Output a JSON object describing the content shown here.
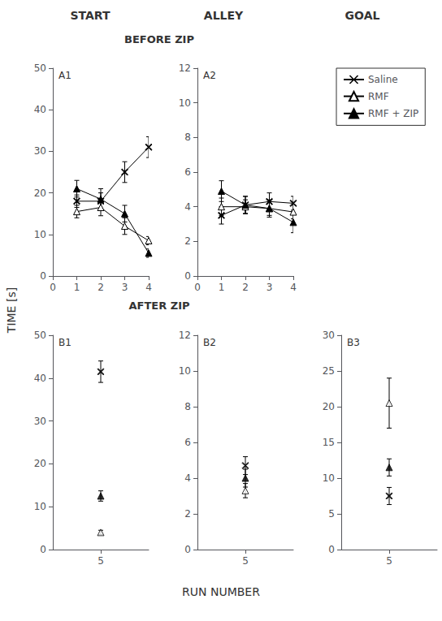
{
  "chart_data": [
    {
      "type": "line",
      "title": "A1",
      "x": [
        1,
        2,
        3,
        4
      ],
      "xlim": [
        0,
        4
      ],
      "xticks": [
        0,
        1,
        2,
        3,
        4
      ],
      "ylim": [
        0,
        50
      ],
      "yticks": [
        0,
        10,
        20,
        30,
        40,
        50
      ],
      "grid": false,
      "series": [
        {
          "name": "Saline",
          "color": "#000000",
          "marker": "x",
          "values": [
            18,
            18,
            25,
            31
          ],
          "error": [
            1.5,
            2.0,
            2.5,
            2.5
          ]
        },
        {
          "name": "RMF",
          "color": "#000000",
          "marker": "triangle-open",
          "values": [
            15.5,
            16.5,
            12,
            8.5
          ],
          "error": [
            1.5,
            2.0,
            2.0,
            1.0
          ]
        },
        {
          "name": "RMF + ZIP",
          "color": "#000000",
          "marker": "triangle",
          "values": [
            21,
            18.5,
            15,
            5.5
          ],
          "error": [
            2.0,
            2.5,
            2.0,
            1.0
          ]
        }
      ]
    },
    {
      "type": "line",
      "title": "A2",
      "x": [
        1,
        2,
        3,
        4
      ],
      "xlim": [
        0,
        4
      ],
      "xticks": [
        0,
        1,
        2,
        3,
        4
      ],
      "ylim": [
        0,
        12
      ],
      "yticks": [
        0,
        2,
        4,
        6,
        8,
        10,
        12
      ],
      "grid": false,
      "series": [
        {
          "name": "Saline",
          "color": "#000000",
          "marker": "x",
          "values": [
            3.5,
            4.1,
            4.3,
            4.2
          ],
          "error": [
            0.5,
            0.5,
            0.5,
            0.4
          ]
        },
        {
          "name": "RMF",
          "color": "#000000",
          "marker": "triangle-open",
          "values": [
            4.0,
            4.0,
            3.9,
            3.7
          ],
          "error": [
            0.5,
            0.4,
            0.4,
            0.4
          ]
        },
        {
          "name": "RMF + ZIP",
          "color": "#000000",
          "marker": "triangle",
          "values": [
            4.9,
            4.1,
            3.9,
            3.1
          ],
          "error": [
            0.6,
            0.5,
            0.5,
            0.6
          ]
        }
      ]
    },
    {
      "type": "scatter",
      "title": "B1",
      "x": [
        5
      ],
      "xlim": [
        4,
        6
      ],
      "xticks": [
        5
      ],
      "ylim": [
        0,
        50
      ],
      "yticks": [
        0,
        10,
        20,
        30,
        40,
        50
      ],
      "grid": false,
      "series": [
        {
          "name": "Saline",
          "color": "#000000",
          "marker": "x",
          "values": [
            41.5
          ],
          "error": [
            2.5
          ]
        },
        {
          "name": "RMF",
          "color": "#000000",
          "marker": "triangle-open",
          "values": [
            4.0
          ],
          "error": [
            0.5
          ]
        },
        {
          "name": "RMF + ZIP",
          "color": "#000000",
          "marker": "triangle",
          "values": [
            12.5
          ],
          "error": [
            1.2
          ]
        }
      ]
    },
    {
      "type": "scatter",
      "title": "B2",
      "x": [
        5
      ],
      "xlim": [
        4,
        6
      ],
      "xticks": [
        5
      ],
      "ylim": [
        0,
        12
      ],
      "yticks": [
        0,
        2,
        4,
        6,
        8,
        10,
        12
      ],
      "grid": false,
      "series": [
        {
          "name": "Saline",
          "color": "#000000",
          "marker": "x",
          "values": [
            4.7
          ],
          "error": [
            0.5
          ]
        },
        {
          "name": "RMF",
          "color": "#000000",
          "marker": "triangle-open",
          "values": [
            3.3
          ],
          "error": [
            0.4
          ]
        },
        {
          "name": "RMF + ZIP",
          "color": "#000000",
          "marker": "triangle",
          "values": [
            4.0
          ],
          "error": [
            0.5
          ]
        }
      ]
    },
    {
      "type": "scatter",
      "title": "B3",
      "x": [
        5
      ],
      "xlim": [
        4,
        6
      ],
      "xticks": [
        5
      ],
      "ylim": [
        0,
        30
      ],
      "yticks": [
        0,
        5,
        10,
        15,
        20,
        25,
        30
      ],
      "grid": false,
      "series": [
        {
          "name": "Saline",
          "color": "#000000",
          "marker": "x",
          "values": [
            7.5
          ],
          "error": [
            1.2
          ]
        },
        {
          "name": "RMF",
          "color": "#000000",
          "marker": "triangle-open",
          "values": [
            20.5
          ],
          "error": [
            3.5
          ]
        },
        {
          "name": "RMF + ZIP",
          "color": "#000000",
          "marker": "triangle",
          "values": [
            11.5
          ],
          "error": [
            1.2
          ]
        }
      ]
    }
  ],
  "annotations": [
    "START",
    "ALLEY",
    "GOAL",
    "BEFORE ZIP",
    "AFTER ZIP"
  ],
  "xlabel": "RUN NUMBER",
  "ylabel": "TIME [s]",
  "legend": "upper right"
}
